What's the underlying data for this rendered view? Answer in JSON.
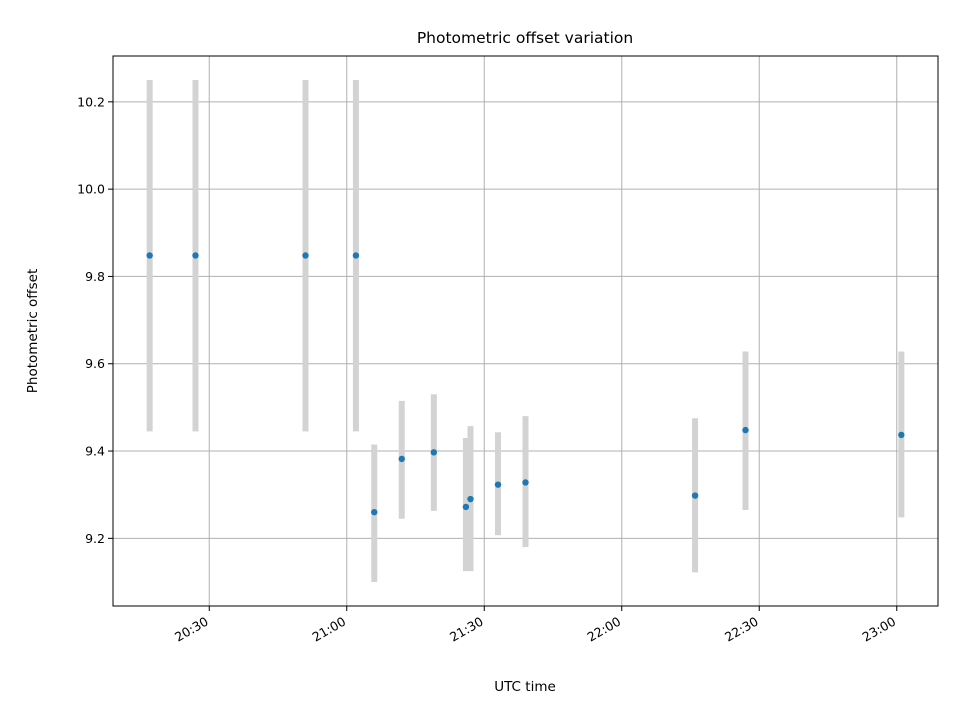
{
  "chart_data": {
    "type": "scatter",
    "title": "Photometric offset variation",
    "xlabel": "UTC time",
    "ylabel": "Photometric offset",
    "x_ticks": [
      "20:30",
      "21:00",
      "21:30",
      "22:00",
      "22:30",
      "23:00"
    ],
    "y_ticks": [
      "9.2",
      "9.4",
      "9.6",
      "9.8",
      "10.0",
      "10.2"
    ],
    "xlim": [
      "20:09",
      "23:09"
    ],
    "ylim": [
      9.045,
      10.305
    ],
    "grid": true,
    "colors": {
      "points": "#1f77b4",
      "errorbars": "#d3d3d3",
      "grid": "#b0b0b0"
    },
    "points": [
      {
        "x": "20:17",
        "y": 9.848,
        "ylo": 9.445,
        "yhi": 10.25
      },
      {
        "x": "20:27",
        "y": 9.848,
        "ylo": 9.445,
        "yhi": 10.25
      },
      {
        "x": "20:51",
        "y": 9.848,
        "ylo": 9.445,
        "yhi": 10.25
      },
      {
        "x": "21:02",
        "y": 9.848,
        "ylo": 9.445,
        "yhi": 10.25
      },
      {
        "x": "21:06",
        "y": 9.26,
        "ylo": 9.1,
        "yhi": 9.415
      },
      {
        "x": "21:12",
        "y": 9.382,
        "ylo": 9.245,
        "yhi": 9.515
      },
      {
        "x": "21:19",
        "y": 9.397,
        "ylo": 9.263,
        "yhi": 9.53
      },
      {
        "x": "21:26",
        "y": 9.272,
        "ylo": 9.125,
        "yhi": 9.43
      },
      {
        "x": "21:27",
        "y": 9.29,
        "ylo": 9.125,
        "yhi": 9.457
      },
      {
        "x": "21:33",
        "y": 9.323,
        "ylo": 9.207,
        "yhi": 9.443
      },
      {
        "x": "21:39",
        "y": 9.328,
        "ylo": 9.18,
        "yhi": 9.48
      },
      {
        "x": "22:16",
        "y": 9.298,
        "ylo": 9.122,
        "yhi": 9.475
      },
      {
        "x": "22:27",
        "y": 9.448,
        "ylo": 9.265,
        "yhi": 9.628
      },
      {
        "x": "23:01",
        "y": 9.437,
        "ylo": 9.248,
        "yhi": 9.628
      }
    ]
  }
}
